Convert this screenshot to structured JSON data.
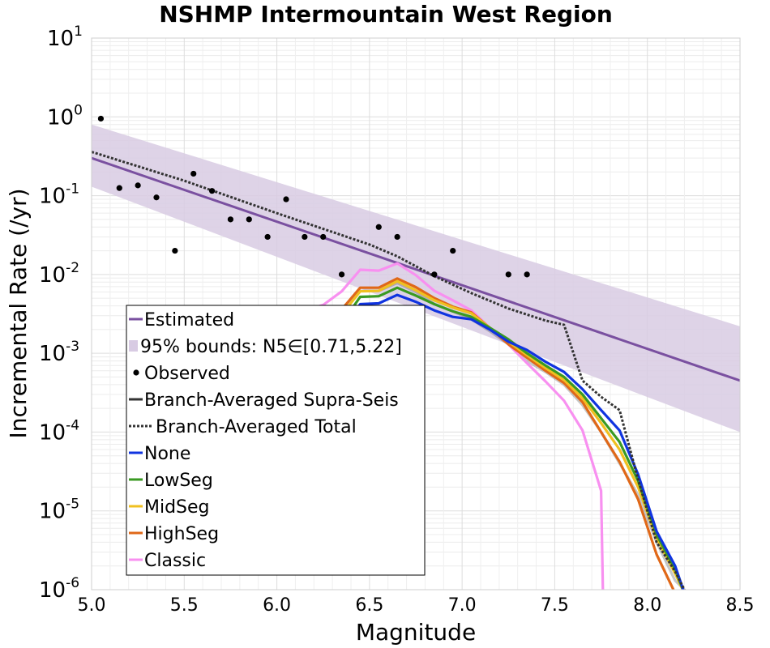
{
  "chart_data": {
    "type": "line",
    "title": "NSHMP Intermountain West Region",
    "xlabel": "Magnitude",
    "ylabel": "Incremental Rate (/yr)",
    "xlim": [
      5.0,
      8.5
    ],
    "ylim": [
      1e-06,
      10
    ],
    "yscale": "log",
    "grid": true,
    "legend_position": "lower-left",
    "x_ticks": [
      "5.0",
      "5.5",
      "6.0",
      "6.5",
      "7.0",
      "7.5",
      "8.0",
      "8.5"
    ],
    "y_ticks": [
      {
        "base": "10",
        "exp": "1"
      },
      {
        "base": "10",
        "exp": "0"
      },
      {
        "base": "10",
        "exp": "-1"
      },
      {
        "base": "10",
        "exp": "-2"
      },
      {
        "base": "10",
        "exp": "-3"
      },
      {
        "base": "10",
        "exp": "-4"
      },
      {
        "base": "10",
        "exp": "-5"
      },
      {
        "base": "10",
        "exp": "-6"
      }
    ],
    "legend": [
      {
        "label": "Estimated",
        "kind": "line",
        "color": "#7a50a0"
      },
      {
        "label": "95% bounds: N5∈[0.71,5.22]",
        "kind": "band",
        "color": "#d8cbe3"
      },
      {
        "label": "Observed",
        "kind": "dot",
        "color": "#000000"
      },
      {
        "label": "Branch-Averaged Supra-Seis",
        "kind": "line",
        "color": "#333333"
      },
      {
        "label": "Branch-Averaged Total",
        "kind": "dotted",
        "color": "#333333"
      },
      {
        "label": "None",
        "kind": "line",
        "color": "#1034e0"
      },
      {
        "label": "LowSeg",
        "kind": "line",
        "color": "#3a9a22"
      },
      {
        "label": "MidSeg",
        "kind": "line",
        "color": "#f0c020"
      },
      {
        "label": "HighSeg",
        "kind": "line",
        "color": "#e06818"
      },
      {
        "label": "Classic",
        "kind": "line",
        "color": "#f890f0"
      }
    ],
    "estimated": {
      "x": [
        5.0,
        8.5
      ],
      "y": [
        0.3,
        0.00045
      ]
    },
    "bounds_95": {
      "x": [
        5.0,
        8.5
      ],
      "upper": [
        0.8,
        0.0022
      ],
      "lower": [
        0.13,
        0.0001
      ]
    },
    "observed": {
      "x": [
        5.05,
        5.15,
        5.25,
        5.35,
        5.45,
        5.55,
        5.65,
        5.75,
        5.85,
        5.95,
        6.05,
        6.15,
        6.25,
        6.35,
        6.55,
        6.65,
        6.85,
        6.95,
        7.25,
        7.35
      ],
      "y": [
        0.95,
        0.125,
        0.135,
        0.095,
        0.02,
        0.19,
        0.115,
        0.05,
        0.05,
        0.03,
        0.09,
        0.03,
        0.03,
        0.01,
        0.04,
        0.03,
        0.01,
        0.02,
        0.01,
        0.01
      ]
    },
    "series": [
      {
        "name": "Branch-Averaged Total",
        "style": "dotted",
        "color": "#333333",
        "x": [
          5.0,
          5.5,
          6.0,
          6.5,
          6.65,
          6.85,
          7.05,
          7.25,
          7.45,
          7.55,
          7.65,
          7.75,
          7.85,
          7.95,
          8.05,
          8.15,
          8.2
        ],
        "y": [
          0.36,
          0.155,
          0.06,
          0.024,
          0.017,
          0.0095,
          0.0058,
          0.0037,
          0.0026,
          0.0023,
          0.00045,
          0.00028,
          0.00019,
          2.5e-05,
          4e-06,
          1.7e-06,
          1e-06
        ]
      },
      {
        "name": "Branch-Averaged Supra-Seis",
        "style": "solid",
        "color": "#444444",
        "opacity": 0.3,
        "x": [
          5.55,
          5.65,
          5.75,
          5.85,
          5.95,
          6.05,
          6.15,
          6.25,
          6.35,
          6.45,
          6.55,
          6.65,
          6.75,
          6.85,
          6.95,
          7.05,
          7.15,
          7.25,
          7.35,
          7.45,
          7.55,
          7.65,
          7.75,
          7.85,
          7.95,
          8.05,
          8.15,
          8.2
        ],
        "y": [
          1.8e-05,
          2e-05,
          4e-05,
          1.3e-05,
          0.00032,
          0.00038,
          0.0016,
          0.0025,
          0.0037,
          0.0062,
          0.0062,
          0.0078,
          0.006,
          0.0042,
          0.0034,
          0.0027,
          0.0019,
          0.0013,
          0.0008,
          0.00058,
          0.0004,
          0.00022,
          0.0001,
          4e-05,
          1.6e-05,
          4e-06,
          1.3e-06,
          1e-06
        ]
      },
      {
        "name": "None",
        "style": "solid",
        "color": "#1034e0",
        "x": [
          5.6,
          5.65,
          5.75,
          5.85,
          5.95,
          6.05,
          6.15,
          6.25,
          6.35,
          6.45,
          6.55,
          6.65,
          6.75,
          6.85,
          6.95,
          7.05,
          7.15,
          7.25,
          7.35,
          7.45,
          7.55,
          7.65,
          7.75,
          7.85,
          7.95,
          8.05,
          8.15,
          8.2
        ],
        "y": [
          4e-06,
          4e-06,
          7e-06,
          2.5e-06,
          1.8e-05,
          5e-05,
          0.00055,
          0.0011,
          0.0019,
          0.0042,
          0.0043,
          0.0055,
          0.0045,
          0.0035,
          0.0029,
          0.0027,
          0.002,
          0.0014,
          0.0011,
          0.00078,
          0.00058,
          0.00035,
          0.00019,
          0.000105,
          2.9e-05,
          5.5e-06,
          2e-06,
          9e-07
        ]
      },
      {
        "name": "LowSeg",
        "style": "solid",
        "color": "#3a9a22",
        "x": [
          5.6,
          5.65,
          5.75,
          5.85,
          5.95,
          6.05,
          6.15,
          6.25,
          6.35,
          6.45,
          6.55,
          6.65,
          6.75,
          6.85,
          6.95,
          7.05,
          7.15,
          7.25,
          7.35,
          7.45,
          7.55,
          7.65,
          7.75,
          7.85,
          7.95,
          8.05,
          8.15,
          8.2
        ],
        "y": [
          5e-06,
          6e-06,
          9e-06,
          3.2e-06,
          2.6e-05,
          8e-05,
          0.0008,
          0.0015,
          0.0024,
          0.0052,
          0.0053,
          0.0068,
          0.0054,
          0.0042,
          0.0034,
          0.0029,
          0.0021,
          0.0015,
          0.001,
          0.0007,
          0.0005,
          0.0003,
          0.00015,
          7.5e-05,
          2.4e-05,
          5e-06,
          1.8e-06,
          9e-07
        ]
      },
      {
        "name": "MidSeg",
        "style": "solid",
        "color": "#f0c020",
        "x": [
          5.6,
          5.65,
          5.75,
          5.85,
          5.95,
          6.05,
          6.15,
          6.25,
          6.35,
          6.45,
          6.55,
          6.65,
          6.75,
          6.85,
          6.95,
          7.05,
          7.15,
          7.25,
          7.35,
          7.45,
          7.55,
          7.65,
          7.75,
          7.85,
          7.95,
          8.05,
          8.15,
          8.2
        ],
        "y": [
          7.5e-06,
          9e-06,
          1.4e-05,
          5e-06,
          5e-05,
          0.00013,
          0.0011,
          0.002,
          0.0031,
          0.0061,
          0.0062,
          0.0082,
          0.0063,
          0.0047,
          0.0038,
          0.0032,
          0.0021,
          0.0014,
          0.00095,
          0.00065,
          0.00046,
          0.00027,
          0.00013,
          6e-05,
          2e-05,
          4.5e-06,
          1.6e-06,
          9e-07
        ]
      },
      {
        "name": "HighSeg",
        "style": "solid",
        "color": "#e06818",
        "x": [
          5.55,
          5.6,
          5.65,
          5.75,
          5.85,
          5.95,
          6.05,
          6.15,
          6.25,
          6.35,
          6.45,
          6.55,
          6.65,
          6.75,
          6.85,
          6.95,
          7.05,
          7.15,
          7.25,
          7.35,
          7.45,
          7.55,
          7.65,
          7.75,
          7.85,
          7.95,
          8.05,
          8.15
        ],
        "y": [
          1.35e-05,
          1.4e-05,
          1.6e-05,
          2.5e-05,
          9e-06,
          0.00018,
          0.0003,
          0.0014,
          0.0025,
          0.0036,
          0.0068,
          0.0068,
          0.0089,
          0.0069,
          0.005,
          0.0039,
          0.0033,
          0.0021,
          0.0013,
          0.00088,
          0.0006,
          0.00042,
          0.00024,
          0.0001,
          4.2e-05,
          1.4e-05,
          2.8e-06,
          9e-07
        ]
      },
      {
        "name": "Classic",
        "style": "solid",
        "color": "#f890f0",
        "x": [
          5.55,
          5.65,
          5.75,
          5.85,
          5.95,
          6.05,
          6.15,
          6.25,
          6.35,
          6.45,
          6.55,
          6.65,
          6.75,
          6.85,
          6.95,
          7.05,
          7.15,
          7.25,
          7.35,
          7.45,
          7.55,
          7.65,
          7.75,
          7.76
        ],
        "y": [
          8e-05,
          6.5e-05,
          0.00012,
          3.4e-05,
          0.00022,
          0.0011,
          0.0035,
          0.0041,
          0.0061,
          0.0115,
          0.0112,
          0.0138,
          0.0098,
          0.0062,
          0.0047,
          0.0035,
          0.0021,
          0.0013,
          0.00075,
          0.00044,
          0.00025,
          0.000105,
          1.8e-05,
          9e-07
        ]
      }
    ]
  }
}
